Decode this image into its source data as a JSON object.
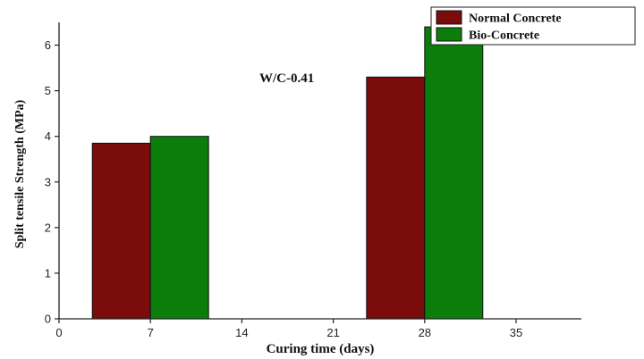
{
  "chart_data": {
    "type": "bar",
    "xlabel": "Curing time (days)",
    "ylabel": "Split tensile  Strength (MPa)",
    "annotation": "W/C-0.41",
    "xlim": [
      0,
      40
    ],
    "ylim": [
      0,
      6.5
    ],
    "xticks": [
      0,
      7,
      14,
      21,
      28,
      35
    ],
    "yticks": [
      0,
      1,
      2,
      3,
      4,
      5,
      6
    ],
    "categories": [
      7,
      28
    ],
    "series": [
      {
        "name": "Normal Concrete",
        "color": "#7a0c0c",
        "values": [
          3.85,
          5.3
        ]
      },
      {
        "name": "Bio-Concrete",
        "color": "#0b7d0b",
        "values": [
          4.0,
          6.4
        ]
      }
    ],
    "legend_position": "top-right",
    "grid": false
  }
}
